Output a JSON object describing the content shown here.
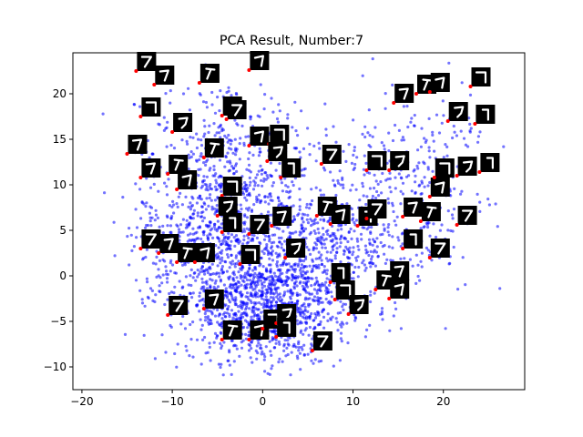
{
  "chart_data": {
    "type": "scatter",
    "title": "PCA Result, Number:7",
    "xlabel": "",
    "ylabel": "",
    "xlim": [
      -21,
      29
    ],
    "ylim": [
      -12.5,
      24.5
    ],
    "xticks": [
      -20,
      -10,
      0,
      10,
      20
    ],
    "yticks": [
      -10,
      -5,
      0,
      5,
      10,
      15,
      20
    ],
    "xtick_labels": [
      "−20",
      "−10",
      "0",
      "10",
      "20"
    ],
    "ytick_labels": [
      "−10",
      "−5",
      "0",
      "5",
      "10",
      "15",
      "20"
    ],
    "grid": false,
    "legend": "none",
    "colors": {
      "points": "#0000ff",
      "annotation_marker": "#ff0000",
      "thumbnail_bg": "#000000",
      "digit_stroke": "#ffffff"
    },
    "approx_point_count": 3000,
    "annotated_points": [
      {
        "x": -14,
        "y": 22.5
      },
      {
        "x": -12,
        "y": 21
      },
      {
        "x": -7,
        "y": 21.2
      },
      {
        "x": -1.5,
        "y": 22.6
      },
      {
        "x": -13.5,
        "y": 17.5
      },
      {
        "x": -10,
        "y": 15.8
      },
      {
        "x": -4.5,
        "y": 17.6
      },
      {
        "x": -4,
        "y": 17.2
      },
      {
        "x": -15,
        "y": 13.4
      },
      {
        "x": -6.5,
        "y": 13
      },
      {
        "x": -1.5,
        "y": 14.3
      },
      {
        "x": 0.7,
        "y": 14.5
      },
      {
        "x": 0.5,
        "y": 12.6
      },
      {
        "x": 2,
        "y": 10.8
      },
      {
        "x": 6.5,
        "y": 12.3
      },
      {
        "x": -13.5,
        "y": 10.8
      },
      {
        "x": -10.5,
        "y": 11.2
      },
      {
        "x": -9.5,
        "y": 9.5
      },
      {
        "x": -4.5,
        "y": 8.8
      },
      {
        "x": -5,
        "y": 6.6
      },
      {
        "x": -4.5,
        "y": 4.8
      },
      {
        "x": -1.5,
        "y": 4.6
      },
      {
        "x": 1,
        "y": 5.5
      },
      {
        "x": 6,
        "y": 6.6
      },
      {
        "x": 7.5,
        "y": 5.7
      },
      {
        "x": 11.5,
        "y": 11.6
      },
      {
        "x": 14,
        "y": 11.6
      },
      {
        "x": 10.5,
        "y": 5.5
      },
      {
        "x": 11.5,
        "y": 6.3
      },
      {
        "x": 15.5,
        "y": 6.5
      },
      {
        "x": 17.5,
        "y": 6
      },
      {
        "x": 18.5,
        "y": 8.7
      },
      {
        "x": 19,
        "y": 10.8
      },
      {
        "x": 21.5,
        "y": 11
      },
      {
        "x": 24,
        "y": 11.4
      },
      {
        "x": 21.5,
        "y": 5.6
      },
      {
        "x": 14.5,
        "y": 19
      },
      {
        "x": 17,
        "y": 20
      },
      {
        "x": 18.5,
        "y": 20.2
      },
      {
        "x": 23,
        "y": 20.8
      },
      {
        "x": 20.5,
        "y": 17
      },
      {
        "x": 23.5,
        "y": 16.7
      },
      {
        "x": -13.5,
        "y": 3
      },
      {
        "x": -11.5,
        "y": 2.5
      },
      {
        "x": -9.5,
        "y": 1.5
      },
      {
        "x": -7.5,
        "y": 1.5
      },
      {
        "x": -2.5,
        "y": 1.3
      },
      {
        "x": 2.5,
        "y": 2
      },
      {
        "x": 15.5,
        "y": 3
      },
      {
        "x": 18.5,
        "y": 2
      },
      {
        "x": 14,
        "y": -0.5
      },
      {
        "x": 12.5,
        "y": -1.5
      },
      {
        "x": 14,
        "y": -2.5
      },
      {
        "x": 8,
        "y": -2.6
      },
      {
        "x": 9.5,
        "y": -4.2
      },
      {
        "x": 7.5,
        "y": -0.7
      },
      {
        "x": -10.5,
        "y": -4.3
      },
      {
        "x": -6.5,
        "y": -3.6
      },
      {
        "x": -4.5,
        "y": -7
      },
      {
        "x": -1.5,
        "y": -7
      },
      {
        "x": 0,
        "y": -5.8
      },
      {
        "x": 1.5,
        "y": -5.2
      },
      {
        "x": 1.5,
        "y": -6.7
      },
      {
        "x": 5.5,
        "y": -8.2
      }
    ]
  }
}
